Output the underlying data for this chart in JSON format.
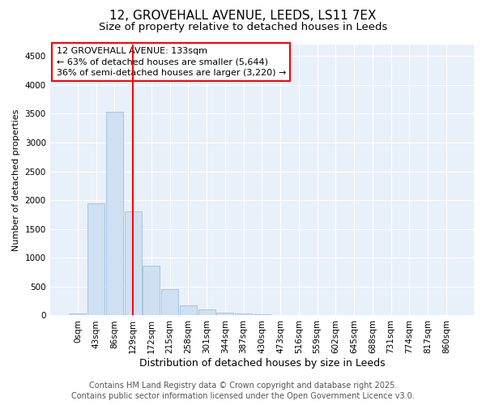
{
  "title_line1": "12, GROVEHALL AVENUE, LEEDS, LS11 7EX",
  "title_line2": "Size of property relative to detached houses in Leeds",
  "xlabel": "Distribution of detached houses by size in Leeds",
  "ylabel": "Number of detached properties",
  "bar_color": "#cfe0f3",
  "bar_edgecolor": "#9fbfdf",
  "property_line_color": "red",
  "annotation_title": "12 GROVEHALL AVENUE: 133sqm",
  "annotation_line2": "← 63% of detached houses are smaller (5,644)",
  "annotation_line3": "36% of semi-detached houses are larger (3,220) →",
  "footer_line1": "Contains HM Land Registry data © Crown copyright and database right 2025.",
  "footer_line2": "Contains public sector information licensed under the Open Government Licence v3.0.",
  "categories": [
    "0sqm",
    "43sqm",
    "86sqm",
    "129sqm",
    "172sqm",
    "215sqm",
    "258sqm",
    "301sqm",
    "344sqm",
    "387sqm",
    "430sqm",
    "473sqm",
    "516sqm",
    "559sqm",
    "602sqm",
    "645sqm",
    "688sqm",
    "731sqm",
    "774sqm",
    "817sqm",
    "860sqm"
  ],
  "values": [
    30,
    1950,
    3530,
    1800,
    860,
    450,
    175,
    100,
    55,
    35,
    20,
    0,
    0,
    0,
    0,
    0,
    0,
    0,
    0,
    0,
    0
  ],
  "property_line_index": 3,
  "ylim": [
    0,
    4700
  ],
  "yticks": [
    0,
    500,
    1000,
    1500,
    2000,
    2500,
    3000,
    3500,
    4000,
    4500
  ],
  "background_color": "#e8f0fa",
  "grid_color": "#ffffff",
  "title1_fontsize": 11,
  "title2_fontsize": 9.5,
  "xlabel_fontsize": 9,
  "ylabel_fontsize": 8,
  "tick_fontsize": 7.5,
  "annot_fontsize": 8,
  "footer_fontsize": 7
}
